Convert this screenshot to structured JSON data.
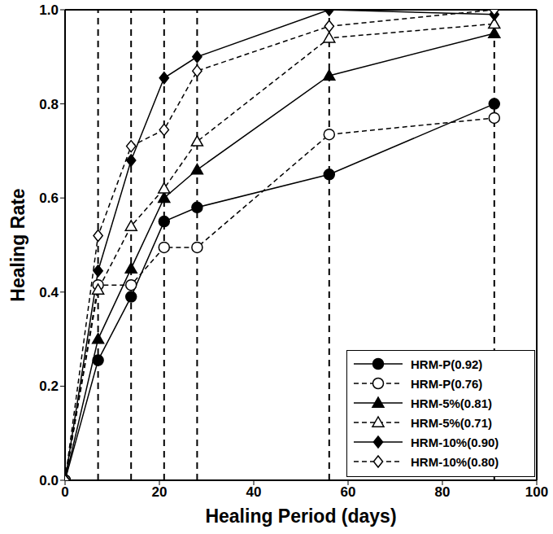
{
  "chart_data": {
    "type": "line",
    "x_label": "Healing Period (days)",
    "y_label": "Healing Rate",
    "x": [
      0,
      7,
      14,
      21,
      28,
      56,
      91
    ],
    "xlim": [
      0,
      100
    ],
    "xticks": [
      0,
      20,
      40,
      60,
      80,
      100
    ],
    "ylim": [
      0,
      1
    ],
    "yticks": [
      {
        "value": 0,
        "label": "0.0"
      },
      0.2,
      0.4,
      0.6,
      0.8,
      {
        "value": 1,
        "label": "1.0"
      }
    ],
    "vlines": [
      7,
      14,
      21,
      28,
      56,
      91
    ],
    "grid": false,
    "legend": "lower right",
    "series": [
      {
        "name": "HRM-P(0.92)",
        "color": "#000000",
        "marker": "circle",
        "line_style": "solid",
        "values": [
          0,
          0.255,
          0.39,
          0.55,
          0.58,
          0.65,
          0.8
        ]
      },
      {
        "name": "HRM-P(0.76)",
        "color": "#000000",
        "marker": "open_circle",
        "line_style": "dashed",
        "values": [
          0,
          0.415,
          0.415,
          0.495,
          0.495,
          0.735,
          0.77
        ]
      },
      {
        "name": "HRM-5%(0.81)",
        "color": "#000000",
        "marker": "triangle",
        "line_style": "solid",
        "values": [
          0,
          0.3,
          0.45,
          0.6,
          0.66,
          0.86,
          0.95
        ]
      },
      {
        "name": "HRM-5%(0.71)",
        "color": "#000000",
        "marker": "open_triangle",
        "line_style": "dashed",
        "values": [
          0,
          0.405,
          0.54,
          0.62,
          0.72,
          0.94,
          0.97
        ]
      },
      {
        "name": "HRM-10%(0.90)",
        "color": "#000000",
        "marker": "diamond",
        "line_style": "solid",
        "values": [
          0,
          0.445,
          0.68,
          0.855,
          0.9,
          1.0,
          0.99
        ]
      },
      {
        "name": "HRM-10%(0.80)",
        "color": "#000000",
        "marker": "open_diamond",
        "line_style": "dashed",
        "values": [
          0,
          0.52,
          0.71,
          0.745,
          0.87,
          0.965,
          1.0
        ]
      }
    ]
  }
}
